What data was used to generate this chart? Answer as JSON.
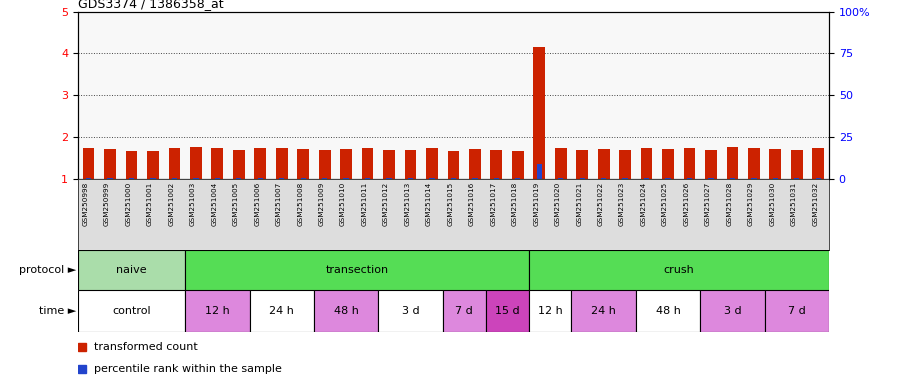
{
  "title": "GDS3374 / 1386358_at",
  "samples": [
    "GSM250998",
    "GSM250999",
    "GSM251000",
    "GSM251001",
    "GSM251002",
    "GSM251003",
    "GSM251004",
    "GSM251005",
    "GSM251006",
    "GSM251007",
    "GSM251008",
    "GSM251009",
    "GSM251010",
    "GSM251011",
    "GSM251012",
    "GSM251013",
    "GSM251014",
    "GSM251015",
    "GSM251016",
    "GSM251017",
    "GSM251018",
    "GSM251019",
    "GSM251020",
    "GSM251021",
    "GSM251022",
    "GSM251023",
    "GSM251024",
    "GSM251025",
    "GSM251026",
    "GSM251027",
    "GSM251028",
    "GSM251029",
    "GSM251030",
    "GSM251031",
    "GSM251032"
  ],
  "red_values": [
    1.72,
    1.7,
    1.65,
    1.65,
    1.72,
    1.75,
    1.72,
    1.68,
    1.72,
    1.72,
    1.7,
    1.68,
    1.7,
    1.72,
    1.68,
    1.68,
    1.72,
    1.65,
    1.7,
    1.68,
    1.65,
    4.15,
    1.72,
    1.68,
    1.7,
    1.68,
    1.72,
    1.7,
    1.72,
    1.68,
    1.75,
    1.72,
    1.7,
    1.68,
    1.72
  ],
  "blue_values": [
    0.02,
    0.02,
    0.02,
    0.02,
    0.02,
    0.02,
    0.02,
    0.02,
    0.02,
    0.02,
    0.02,
    0.02,
    0.02,
    0.02,
    0.02,
    0.02,
    0.02,
    0.02,
    0.02,
    0.02,
    0.02,
    0.35,
    0.02,
    0.02,
    0.02,
    0.02,
    0.02,
    0.02,
    0.02,
    0.02,
    0.02,
    0.02,
    0.02,
    0.02,
    0.02
  ],
  "ylim_left": [
    1,
    5
  ],
  "ylim_right": [
    0,
    100
  ],
  "yticks_left": [
    1,
    2,
    3,
    4,
    5
  ],
  "yticks_right": [
    0,
    25,
    50,
    75,
    100
  ],
  "ytick_labels_right": [
    "0",
    "25",
    "50",
    "75",
    "100%"
  ],
  "bar_color_red": "#cc2200",
  "bar_color_blue": "#2244cc",
  "protocol_row": [
    {
      "label": "naive",
      "color": "#aaddaa",
      "start": 0,
      "end": 5
    },
    {
      "label": "transection",
      "color": "#55dd55",
      "start": 5,
      "end": 21
    },
    {
      "label": "crush",
      "color": "#55dd55",
      "start": 21,
      "end": 35
    }
  ],
  "time_row": [
    {
      "label": "control",
      "color": "#ffffff",
      "start": 0,
      "end": 5
    },
    {
      "label": "12 h",
      "color": "#dd88dd",
      "start": 5,
      "end": 8
    },
    {
      "label": "24 h",
      "color": "#ffffff",
      "start": 8,
      "end": 11
    },
    {
      "label": "48 h",
      "color": "#dd88dd",
      "start": 11,
      "end": 14
    },
    {
      "label": "3 d",
      "color": "#ffffff",
      "start": 14,
      "end": 17
    },
    {
      "label": "7 d",
      "color": "#dd88dd",
      "start": 17,
      "end": 19
    },
    {
      "label": "15 d",
      "color": "#cc44bb",
      "start": 19,
      "end": 21
    },
    {
      "label": "12 h",
      "color": "#ffffff",
      "start": 21,
      "end": 23
    },
    {
      "label": "24 h",
      "color": "#dd88dd",
      "start": 23,
      "end": 26
    },
    {
      "label": "48 h",
      "color": "#ffffff",
      "start": 26,
      "end": 29
    },
    {
      "label": "3 d",
      "color": "#dd88dd",
      "start": 29,
      "end": 32
    },
    {
      "label": "7 d",
      "color": "#dd88dd",
      "start": 32,
      "end": 35
    }
  ]
}
